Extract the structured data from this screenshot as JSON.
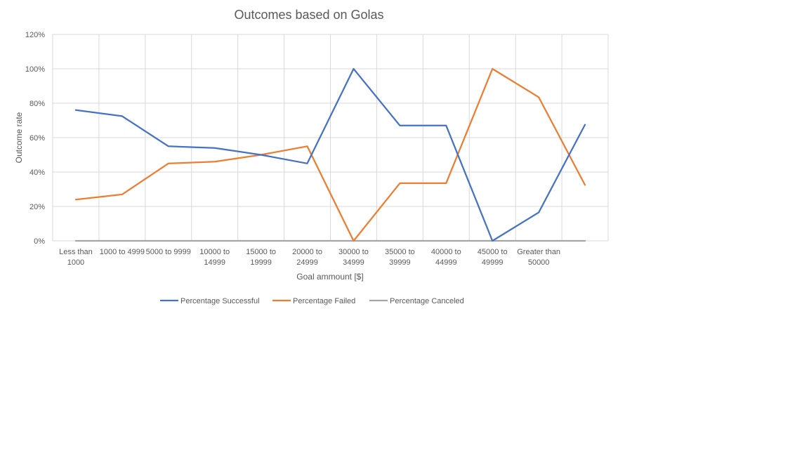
{
  "chart_data": {
    "type": "line",
    "title": "Outcomes based on Golas",
    "xlabel": "Goal ammount [$]",
    "ylabel": "Outcome rate",
    "ylim": [
      0,
      1.2
    ],
    "yticks": [
      "0%",
      "20%",
      "40%",
      "60%",
      "80%",
      "100%",
      "120%"
    ],
    "grid": true,
    "legend": "bottom",
    "categories": [
      [
        "Less than",
        "1000"
      ],
      [
        "1000 to 4999"
      ],
      [
        "5000 to 9999"
      ],
      [
        "10000 to",
        "14999"
      ],
      [
        "15000 to",
        "19999"
      ],
      [
        "20000 to",
        "24999"
      ],
      [
        "30000 to",
        "34999"
      ],
      [
        "35000 to",
        "39999"
      ],
      [
        "40000 to",
        "44999"
      ],
      [
        "45000 to",
        "49999"
      ],
      [
        "Greater than",
        "50000"
      ],
      [
        ""
      ]
    ],
    "series": [
      {
        "name": "Percentage Successful",
        "color": "#4472C4",
        "values": [
          0.76,
          0.725,
          0.55,
          0.54,
          0.5,
          0.45,
          1.0,
          0.67,
          0.67,
          0.0,
          0.165,
          0.675
        ]
      },
      {
        "name": "Percentage Failed",
        "color": "#ED7D31",
        "values": [
          0.24,
          0.27,
          0.45,
          0.46,
          0.5,
          0.55,
          0.0,
          0.335,
          0.335,
          1.0,
          0.835,
          0.325
        ]
      },
      {
        "name": "Percentage Canceled",
        "color": "#A5A5A5",
        "values": [
          0,
          0,
          0,
          0,
          0,
          0,
          0,
          0,
          0,
          0,
          0,
          0
        ]
      }
    ]
  }
}
